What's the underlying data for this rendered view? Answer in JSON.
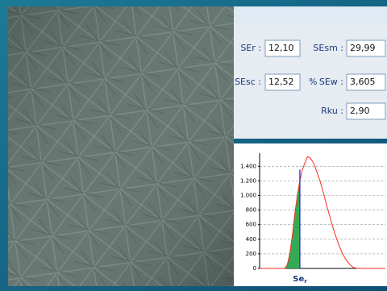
{
  "panel": {
    "fields": [
      {
        "label": "SEr :",
        "value": "12,10"
      },
      {
        "label": "SEsm :",
        "value": "29,99"
      },
      {
        "label": "SEsc :",
        "value": "12,52"
      },
      {
        "label": "SEw :",
        "value": "3,605"
      },
      {
        "label": "Rku :",
        "value": "2,90"
      }
    ],
    "unit": "%"
  },
  "chart_data": {
    "type": "line",
    "xlabel": "Se",
    "xlabel_sub": "r",
    "x": [
      0,
      20,
      22,
      24,
      26,
      28,
      30,
      32,
      34,
      36,
      38,
      40,
      42,
      44,
      46,
      48,
      50,
      52,
      54,
      56,
      58,
      60,
      62,
      64,
      66,
      68,
      70,
      72,
      74,
      76,
      78,
      100
    ],
    "series": [
      {
        "color": "#ff2a1a",
        "values": [
          0,
          0,
          50,
          200,
          450,
          750,
          1000,
          1200,
          1350,
          1450,
          1530,
          1520,
          1470,
          1400,
          1300,
          1200,
          1080,
          950,
          820,
          700,
          580,
          470,
          370,
          280,
          200,
          140,
          90,
          50,
          20,
          5,
          0,
          0
        ]
      }
    ],
    "marker_x": 32,
    "marker_color": "#2233cc",
    "fill_color": "#33aa55",
    "xlim": [
      0,
      100
    ],
    "ylim": [
      0,
      1580
    ],
    "yticks": [
      0,
      200,
      400,
      600,
      800,
      {
        "value": 1000,
        "label": "1.000"
      },
      {
        "value": 1200,
        "label": "1.200"
      },
      {
        "value": 1400,
        "label": "1.400"
      }
    ],
    "grid": true
  }
}
